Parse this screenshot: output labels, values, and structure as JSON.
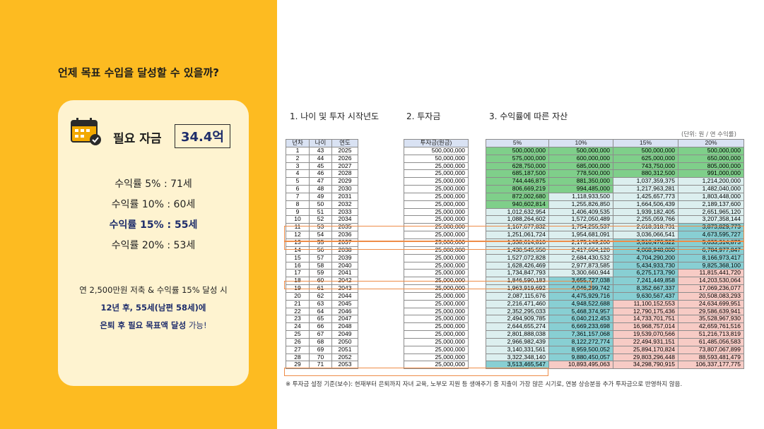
{
  "question": "언제 목표 수입을 달성할 수 있을까?",
  "card": {
    "required_label": "필요 자금",
    "required_value": "34.4억",
    "rates": [
      "수익률   5% : 71세",
      "수익률 10% : 60세",
      "수익률 15% : 55세",
      "수익률 20% : 53세"
    ],
    "highlight_index": 2,
    "summary_line1": "연 2,500만원 저축 & 수익률 15% 달성 시",
    "summary_line2": "12년 후, 55세(남편 58세)에",
    "summary_line3_bold": "은퇴 후 필요 목표액 달성",
    "summary_line3_tail": " 가능!"
  },
  "sections": {
    "s1": "1. 나이 및 투자 시작년도",
    "s2": "2. 투자금",
    "s3": "3. 수익률에 따른 자산"
  },
  "unit_note": "(단위: 원 / 연 수익률)",
  "table": {
    "headers1": [
      "년차",
      "나이",
      "연도"
    ],
    "headers2": [
      "투자금(원금)"
    ],
    "headers3": [
      "5%",
      "10%",
      "15%",
      "20%"
    ],
    "years": [
      1,
      2,
      3,
      4,
      5,
      6,
      7,
      8,
      9,
      10,
      11,
      12,
      13,
      14,
      15,
      16,
      17,
      18,
      19,
      20,
      21,
      22,
      23,
      24,
      25,
      26,
      27,
      28,
      29
    ],
    "ages": [
      43,
      44,
      45,
      46,
      47,
      48,
      49,
      50,
      51,
      52,
      53,
      54,
      55,
      56,
      57,
      58,
      59,
      60,
      61,
      62,
      63,
      64,
      65,
      66,
      67,
      68,
      69,
      70,
      71
    ],
    "calendar_years": [
      2025,
      2026,
      2027,
      2028,
      2029,
      2030,
      2031,
      2032,
      2033,
      2034,
      2035,
      2036,
      2037,
      2038,
      2039,
      2040,
      2041,
      2042,
      2043,
      2044,
      2045,
      2046,
      2047,
      2048,
      2049,
      2050,
      2051,
      2052,
      2053
    ],
    "investment": [
      "500,000,000",
      "50,000,000",
      "25,000,000",
      "25,000,000",
      "25,000,000",
      "25,000,000",
      "25,000,000",
      "25,000,000",
      "25,000,000",
      "25,000,000",
      "25,000,000",
      "25,000,000",
      "25,000,000",
      "25,000,000",
      "25,000,000",
      "25,000,000",
      "25,000,000",
      "25,000,000",
      "25,000,000",
      "25,000,000",
      "25,000,000",
      "25,000,000",
      "25,000,000",
      "25,000,000",
      "25,000,000",
      "25,000,000",
      "25,000,000",
      "25,000,000",
      "25,000,000"
    ],
    "r5": [
      "500,000,000",
      "575,000,000",
      "628,750,000",
      "685,187,500",
      "744,446,875",
      "806,669,219",
      "872,002,680",
      "940,602,814",
      "1,012,632,954",
      "1,088,264,602",
      "1,167,677,832",
      "1,251,061,724",
      "1,338,614,810",
      "1,430,545,550",
      "1,527,072,828",
      "1,628,426,469",
      "1,734,847,793",
      "1,846,590,183",
      "1,963,919,692",
      "2,087,115,676",
      "2,216,471,460",
      "2,352,295,033",
      "2,494,909,785",
      "2,644,655,274",
      "2,801,888,038",
      "2,966,982,439",
      "3,140,331,561",
      "3,322,348,140",
      "3,513,465,547"
    ],
    "r10": [
      "500,000,000",
      "600,000,000",
      "685,000,000",
      "778,500,000",
      "881,350,000",
      "994,485,000",
      "1,118,933,500",
      "1,255,826,850",
      "1,406,409,535",
      "1,572,050,489",
      "1,754,255,537",
      "1,954,681,091",
      "2,175,149,200",
      "2,417,664,120",
      "2,684,430,532",
      "2,977,873,585",
      "3,300,660,944",
      "3,655,727,038",
      "4,046,299,742",
      "4,475,929,716",
      "4,948,522,688",
      "5,468,374,957",
      "6,040,212,453",
      "6,669,233,698",
      "7,361,157,068",
      "8,122,272,774",
      "8,959,500,052",
      "9,880,450,057",
      "10,893,495,063"
    ],
    "r15": [
      "500,000,000",
      "625,000,000",
      "743,750,000",
      "880,312,500",
      "1,037,359,375",
      "1,217,963,281",
      "1,425,657,773",
      "1,664,506,439",
      "1,939,182,405",
      "2,255,059,766",
      "2,618,318,731",
      "3,036,066,541",
      "3,516,476,522",
      "4,068,948,000",
      "4,704,290,200",
      "5,434,933,730",
      "6,275,173,790",
      "7,241,449,858",
      "8,352,667,337",
      "9,630,567,437",
      "11,100,152,553",
      "12,790,175,436",
      "14,733,701,751",
      "16,968,757,014",
      "19,539,070,566",
      "22,494,931,151",
      "25,894,170,824",
      "29,803,296,448",
      "34,298,790,915"
    ],
    "r20": [
      "500,000,000",
      "650,000,000",
      "805,000,000",
      "991,000,000",
      "1,214,200,000",
      "1,482,040,000",
      "1,803,448,000",
      "2,189,137,600",
      "2,651,965,120",
      "3,207,358,144",
      "3,873,829,773",
      "4,673,595,727",
      "5,633,314,873",
      "6,784,977,847",
      "8,166,973,417",
      "9,825,368,100",
      "11,815,441,720",
      "14,203,530,064",
      "17,069,236,077",
      "20,508,083,293",
      "24,634,699,951",
      "29,586,639,941",
      "35,528,967,930",
      "42,659,761,516",
      "51,216,713,819",
      "61,485,056,583",
      "73,807,067,899",
      "88,593,481,479",
      "106,337,177,775"
    ]
  },
  "colors": {
    "left_bg": "#FDBB21",
    "card_bg": "#FEF3D0",
    "highlight_text": "#1E2D6B",
    "row_outline": "#EE8C48",
    "green": "#7FCF8A",
    "pale": "#DCEFEF",
    "teal": "#88CFD3",
    "pink": "#F7CBC5"
  },
  "note": "※ 투자금 설정 기준(보수): 현재부터 은퇴까지 자녀 교육, 노부모 지원 등 생애주기 중 지출이 가장 많은 시기로, 연봉 상승분을 추가 투자금으로 반영하지 않음."
}
